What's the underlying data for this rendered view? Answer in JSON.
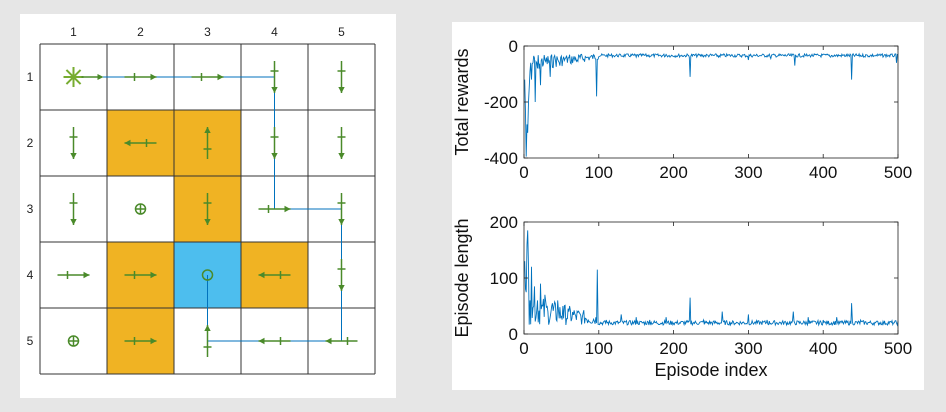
{
  "grid": {
    "size": 5,
    "col_labels": [
      "1",
      "2",
      "3",
      "4",
      "5"
    ],
    "row_labels": [
      "1",
      "2",
      "3",
      "4",
      "5"
    ],
    "colors": {
      "obstacle": "#f0b323",
      "target": "#4dbeee",
      "arrow": "#4a8a2a",
      "path": "#0072bd",
      "grid_line": "#333333",
      "start": "#77ac30"
    },
    "cells": [
      [
        {
          "type": "start"
        },
        {
          "type": "empty",
          "action": "right"
        },
        {
          "type": "empty",
          "action": "right"
        },
        {
          "type": "empty",
          "action": "down"
        },
        {
          "type": "empty",
          "action": "down"
        }
      ],
      [
        {
          "type": "empty",
          "action": "down"
        },
        {
          "type": "obstacle",
          "action": "left"
        },
        {
          "type": "obstacle",
          "action": "up"
        },
        {
          "type": "empty",
          "action": "down"
        },
        {
          "type": "empty",
          "action": "down"
        }
      ],
      [
        {
          "type": "empty",
          "action": "down"
        },
        {
          "type": "empty",
          "action": "stay"
        },
        {
          "type": "obstacle",
          "action": "down"
        },
        {
          "type": "empty",
          "action": "right"
        },
        {
          "type": "empty",
          "action": "down"
        }
      ],
      [
        {
          "type": "empty",
          "action": "right"
        },
        {
          "type": "obstacle",
          "action": "right"
        },
        {
          "type": "target",
          "action": "stay_circle"
        },
        {
          "type": "obstacle",
          "action": "left"
        },
        {
          "type": "empty",
          "action": "down"
        }
      ],
      [
        {
          "type": "empty",
          "action": "stay"
        },
        {
          "type": "obstacle",
          "action": "right"
        },
        {
          "type": "empty",
          "action": "up"
        },
        {
          "type": "empty",
          "action": "left"
        },
        {
          "type": "empty",
          "action": "left"
        }
      ]
    ],
    "path": [
      [
        1,
        1
      ],
      [
        1,
        4
      ],
      [
        3,
        4
      ],
      [
        3,
        5
      ],
      [
        5,
        5
      ],
      [
        5,
        3
      ],
      [
        4,
        3
      ]
    ]
  },
  "chart_data": [
    {
      "type": "line",
      "ylabel": "Total rewards",
      "xlabel": "",
      "xlim": [
        0,
        500
      ],
      "ylim": [
        -400,
        0
      ],
      "xticks": [
        0,
        100,
        200,
        300,
        400,
        500
      ],
      "yticks": [
        0,
        -200,
        -400
      ],
      "xtick_labels": [
        "0",
        "100",
        "200",
        "300",
        "400",
        "500"
      ],
      "ytick_labels": [
        "0",
        "-200",
        "-400"
      ],
      "color": "#0072bd",
      "spikes": [
        [
          1,
          -120
        ],
        [
          2,
          -240
        ],
        [
          3,
          -395
        ],
        [
          4,
          -280
        ],
        [
          5,
          -310
        ],
        [
          6,
          -200
        ],
        [
          7,
          -150
        ],
        [
          8,
          -90
        ],
        [
          10,
          -120
        ],
        [
          12,
          -60
        ],
        [
          15,
          -200
        ],
        [
          18,
          -80
        ],
        [
          22,
          -140
        ],
        [
          28,
          -50
        ],
        [
          35,
          -110
        ],
        [
          40,
          -40
        ],
        [
          48,
          -70
        ],
        [
          55,
          -45
        ],
        [
          62,
          -60
        ],
        [
          72,
          -55
        ],
        [
          85,
          -40
        ],
        [
          97,
          -180
        ],
        [
          120,
          -35
        ],
        [
          150,
          -40
        ],
        [
          190,
          -30
        ],
        [
          222,
          -110
        ],
        [
          260,
          -40
        ],
        [
          300,
          -50
        ],
        [
          330,
          -45
        ],
        [
          362,
          -70
        ],
        [
          380,
          -35
        ],
        [
          410,
          -40
        ],
        [
          438,
          -120
        ],
        [
          470,
          -35
        ],
        [
          498,
          -60
        ]
      ],
      "baseline": -28
    },
    {
      "type": "line",
      "ylabel": "Episode length",
      "xlabel": "Episode index",
      "xlim": [
        0,
        500
      ],
      "ylim": [
        0,
        200
      ],
      "xticks": [
        0,
        100,
        200,
        300,
        400,
        500
      ],
      "yticks": [
        200,
        100,
        0
      ],
      "xtick_labels": [
        "0",
        "100",
        "200",
        "300",
        "400",
        "500"
      ],
      "ytick_labels": [
        "200",
        "100",
        "0"
      ],
      "color": "#0072bd",
      "spikes": [
        [
          1,
          130
        ],
        [
          2,
          80
        ],
        [
          4,
          160
        ],
        [
          5,
          185
        ],
        [
          6,
          120
        ],
        [
          8,
          60
        ],
        [
          10,
          120
        ],
        [
          14,
          85
        ],
        [
          18,
          60
        ],
        [
          22,
          90
        ],
        [
          28,
          70
        ],
        [
          32,
          40
        ],
        [
          38,
          55
        ],
        [
          45,
          60
        ],
        [
          52,
          50
        ],
        [
          60,
          40
        ],
        [
          68,
          35
        ],
        [
          78,
          30
        ],
        [
          98,
          115
        ],
        [
          110,
          25
        ],
        [
          130,
          35
        ],
        [
          150,
          30
        ],
        [
          168,
          25
        ],
        [
          190,
          30
        ],
        [
          222,
          65
        ],
        [
          240,
          25
        ],
        [
          265,
          40
        ],
        [
          300,
          35
        ],
        [
          325,
          25
        ],
        [
          360,
          40
        ],
        [
          380,
          30
        ],
        [
          400,
          25
        ],
        [
          418,
          30
        ],
        [
          438,
          55
        ],
        [
          450,
          25
        ],
        [
          470,
          20
        ],
        [
          495,
          20
        ]
      ],
      "baseline": 16,
      "decay": true
    }
  ]
}
